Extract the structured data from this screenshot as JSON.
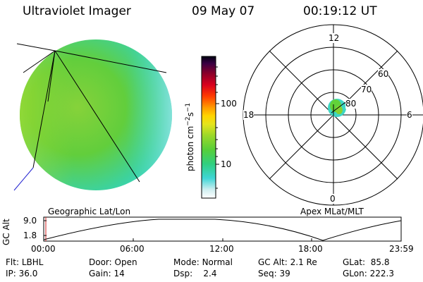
{
  "header": {
    "instrument": "Ultraviolet Imager",
    "date": "09 May 07",
    "time": "00:19:12 UT"
  },
  "left_panel": {
    "label": "Geographic Lat/Lon"
  },
  "right_panel": {
    "label": "Apex MLat/MLT",
    "mlt_labels": [
      "12",
      "18",
      "6",
      "0"
    ],
    "lat_labels": [
      "60",
      "70",
      "80"
    ]
  },
  "colorbar": {
    "unit": "photon cm",
    "exp1": "−2",
    "mid": "s",
    "exp2": "−1",
    "ticks": [
      "100",
      "10"
    ],
    "colors": [
      "#ffffff",
      "#9fe8e8",
      "#2ad4d4",
      "#40d080",
      "#7ed23a",
      "#c8e020",
      "#ffe000",
      "#ff9a00",
      "#ff4000",
      "#d00020",
      "#90002a",
      "#300040",
      "#000000"
    ]
  },
  "orbit": {
    "y_axis_title": "GC Alt",
    "y_ticks": [
      "9.0",
      "1.8"
    ],
    "x_ticks": [
      "00:00",
      "06:00",
      "12:00",
      "18:00",
      "23:59"
    ]
  },
  "info": {
    "row1": [
      {
        "label": "Flt:",
        "value": "LBHL"
      },
      {
        "label": "Door:",
        "value": "Open"
      },
      {
        "label": "Mode:",
        "value": "Normal"
      },
      {
        "label": "GC Alt:",
        "value": "2.1 Re"
      },
      {
        "label": "GLat:",
        "value": "85.8"
      }
    ],
    "row2": [
      {
        "label": "IP:",
        "value": "36.0"
      },
      {
        "label": "Gain:",
        "value": "14"
      },
      {
        "label": "Dsp:",
        "value": "2.4"
      },
      {
        "label": "Seq:",
        "value": "39"
      },
      {
        "label": "GLon:",
        "value": "222.3"
      }
    ]
  }
}
